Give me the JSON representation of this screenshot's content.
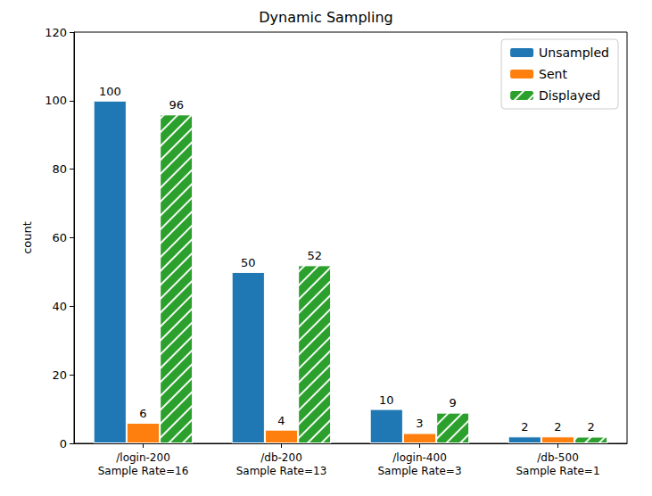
{
  "chart_data": {
    "type": "bar",
    "title": "Dynamic Sampling",
    "y_label": "count",
    "categories": [
      "/login-200\nSample Rate=16",
      "/db-200\nSample Rate=13",
      "/login-400\nSample Rate=3",
      "/db-500\nSample Rate=1"
    ],
    "series": [
      {
        "name": "Unsampled",
        "color": "#1f77b4",
        "values": [
          100,
          50,
          10,
          2
        ]
      },
      {
        "name": "Sent",
        "color": "#ff7f0e",
        "values": [
          6,
          4,
          3,
          2
        ]
      },
      {
        "name": "Displayed",
        "color": "#2ca02c",
        "values": [
          96,
          52,
          9,
          2
        ]
      }
    ],
    "ylim": [
      0,
      120
    ],
    "yticks": [
      0,
      20,
      40,
      60,
      80,
      100,
      120
    ],
    "grid": false,
    "legend": "upper right",
    "data_labels": true
  }
}
